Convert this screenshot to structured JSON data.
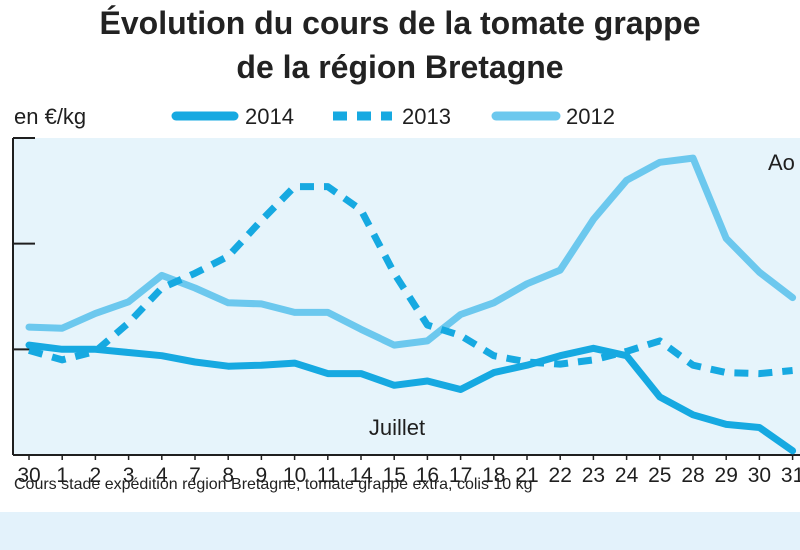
{
  "chart_data": {
    "type": "line",
    "title": [
      "Évolution du cours de la tomate grappe",
      "de la région Bretagne"
    ],
    "ylabel": "en €/kg",
    "ylim": [
      0,
      3
    ],
    "yticks": [
      1,
      2,
      3
    ],
    "yticks_labeled": false,
    "categories": [
      "30",
      "1",
      "2",
      "3",
      "4",
      "7",
      "8",
      "9",
      "10",
      "11",
      "14",
      "15",
      "16",
      "17",
      "18",
      "21",
      "22",
      "23",
      "24",
      "25",
      "28",
      "29",
      "30",
      "31"
    ],
    "month_annotations": [
      {
        "text": "Juillet"
      },
      {
        "text": "Ao"
      }
    ],
    "grid": false,
    "legend_position": "top",
    "series": [
      {
        "name": "2014",
        "style": "solid",
        "color": "#16a9e1",
        "values": [
          1.04,
          1.0,
          1.0,
          0.97,
          0.94,
          0.88,
          0.84,
          0.85,
          0.87,
          0.77,
          0.77,
          0.66,
          0.7,
          0.62,
          0.78,
          0.85,
          0.94,
          1.01,
          0.94,
          0.55,
          0.38,
          0.29,
          0.26,
          0.04
        ]
      },
      {
        "name": "2013",
        "style": "dashed",
        "color": "#16a9e1",
        "values": [
          0.99,
          0.9,
          0.98,
          1.25,
          1.58,
          1.72,
          1.88,
          2.22,
          2.54,
          2.54,
          2.32,
          1.72,
          1.23,
          1.13,
          0.94,
          0.88,
          0.86,
          0.9,
          0.98,
          1.08,
          0.85,
          0.78,
          0.77,
          0.8
        ]
      },
      {
        "name": "2012",
        "style": "solid",
        "color": "#6cc8ee",
        "values": [
          1.21,
          1.2,
          1.34,
          1.45,
          1.7,
          1.58,
          1.44,
          1.43,
          1.35,
          1.35,
          1.19,
          1.04,
          1.08,
          1.33,
          1.44,
          1.62,
          1.75,
          2.23,
          2.6,
          2.77,
          2.81,
          2.05,
          1.73,
          1.49
        ]
      }
    ]
  },
  "footnote": "Cours stade expédition région Bretagne, tomate grappe extra, colis 10 kg",
  "colors": {
    "plot_background": "#e6f4fb",
    "series_2014": "#16a9e1",
    "series_2013": "#16a9e1",
    "series_2012": "#6cc8ee",
    "axis": "#1f1f1f",
    "bottom_band": "#e3f2fb"
  }
}
